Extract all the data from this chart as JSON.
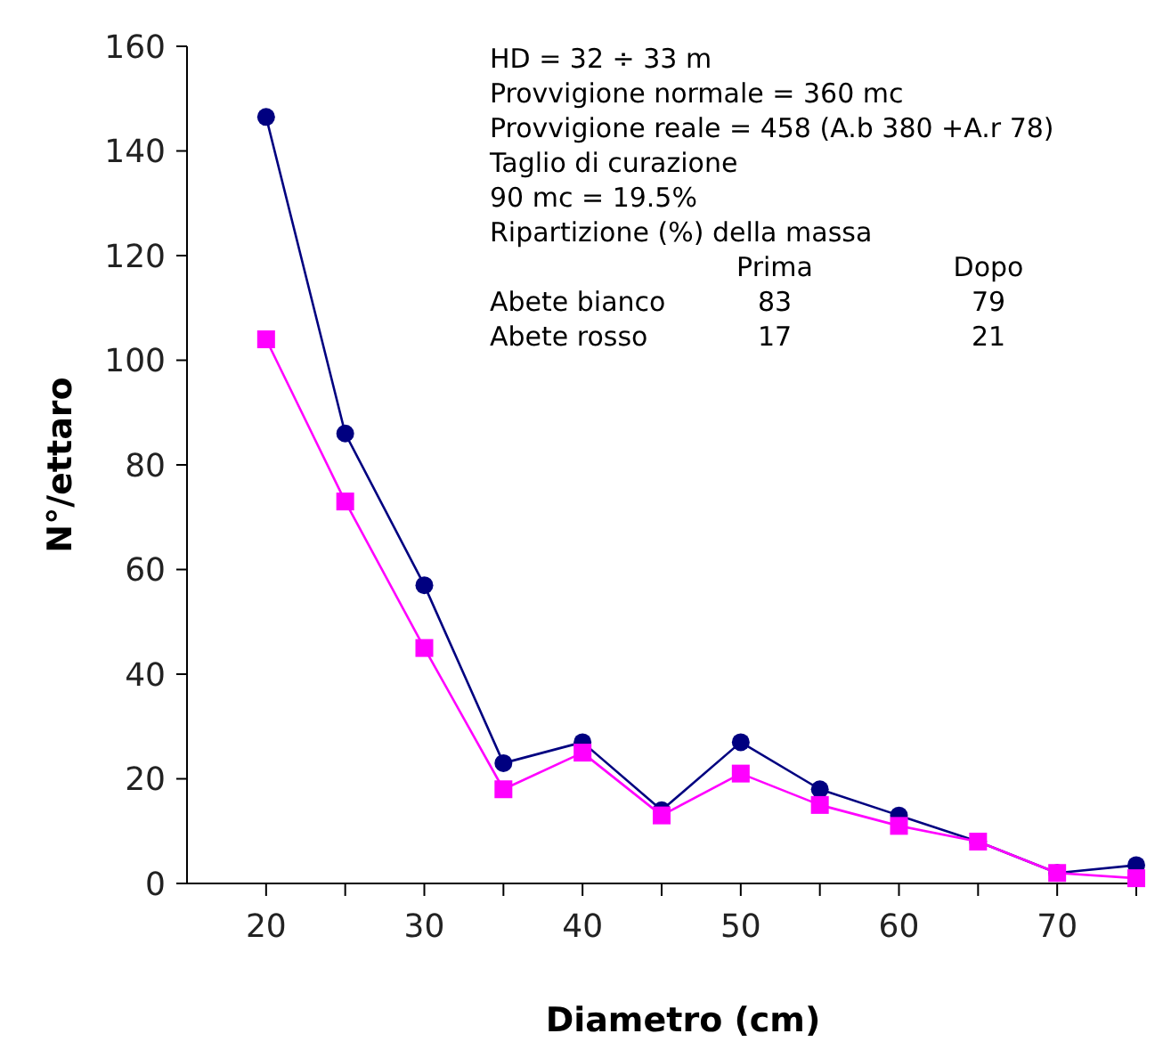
{
  "chart_data": {
    "type": "line",
    "xlabel": "Diametro (cm)",
    "ylabel": "N°/ettaro",
    "x": [
      20,
      25,
      30,
      35,
      40,
      45,
      50,
      55,
      60,
      65,
      70,
      75
    ],
    "series": [
      {
        "color": "#000080",
        "marker": "circle",
        "values": [
          146.5,
          86,
          57,
          23,
          27,
          14,
          27,
          18,
          13,
          8,
          2,
          3.5
        ]
      },
      {
        "color": "#ff00ff",
        "marker": "square",
        "values": [
          104,
          73,
          45,
          18,
          25,
          13,
          21,
          15,
          11,
          8,
          2,
          1
        ]
      }
    ],
    "xlim": [
      15,
      75
    ],
    "xticks": [
      20,
      {
        "value": 25,
        "label": null
      },
      30,
      {
        "value": 35,
        "label": null
      },
      40,
      {
        "value": 45,
        "label": null
      },
      50,
      {
        "value": 55,
        "label": null
      },
      60,
      {
        "value": 65,
        "label": null
      },
      70,
      {
        "value": 75,
        "label": null
      }
    ],
    "ylim": [
      0,
      160
    ],
    "yticks": [
      0,
      20,
      40,
      60,
      80,
      100,
      120,
      140,
      160
    ],
    "grid": false,
    "line_style": "solid",
    "annotations": [
      "HD = 32 ÷ 33 m",
      "Provvigione normale = 360 mc",
      "Provvigione reale = 458 (A.b 380 +A.r  78)",
      "Taglio di curazione",
      "90 mc = 19.5%",
      "Ripartizione (%) della massa",
      "Prima",
      "Dopo",
      "Abete bianco",
      "83",
      "79",
      "Abete rosso",
      "17",
      "21"
    ]
  }
}
